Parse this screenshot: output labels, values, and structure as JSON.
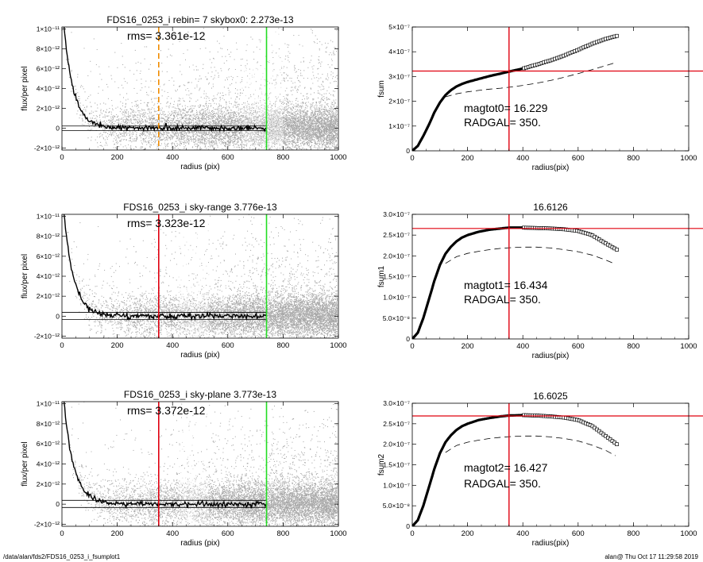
{
  "footer": {
    "left": "/data/alan/fds2/FDS16_0253_i_fsumplot1",
    "right": "alan@  Thu Oct 17 11:29:58 2019"
  },
  "colors": {
    "scatter": "#a9a9a9",
    "scatter_light": "#d9d9d9",
    "profile": "#000000",
    "red": "#e0000f",
    "green": "#22dd22",
    "orange": "#f08c00"
  },
  "chart_data": [
    {
      "id": "p1",
      "type": "scatter",
      "title": "FDS16_0253_i rebin= 7    skybox0:  2.273e-13",
      "annotation": "rms= 3.361e-12",
      "xlabel": "radius (pix)",
      "ylabel": "flux/per pixel",
      "xlim": [
        0,
        1000
      ],
      "ylim": [
        -2.2e-12,
        1.02e-11
      ],
      "xticks": [
        0,
        200,
        400,
        600,
        800,
        1000
      ],
      "xtick_labels": [
        "0",
        "200",
        "400",
        "600",
        "800",
        "1000"
      ],
      "yticks": [
        -2e-12,
        0,
        2e-12,
        4e-12,
        6e-12,
        8e-12,
        1e-11
      ],
      "ytick_labels": [
        "-2×10⁻¹²",
        "0",
        "2×10⁻¹²",
        "4×10⁻¹²",
        "6×10⁻¹²",
        "8×10⁻¹²",
        "1×10⁻¹¹"
      ],
      "hlines": [
        2.2e-13,
        -2.5e-13
      ],
      "vlines": [
        {
          "x": 350,
          "color": "orange",
          "dashed": true
        },
        {
          "x": 740,
          "color": "green",
          "dashed": false
        }
      ],
      "light_band": [
        650,
        800
      ]
    },
    {
      "id": "p2",
      "type": "line",
      "title": "",
      "xlabel": "radius(pix)",
      "ylabel": "fsum",
      "xlim": [
        0,
        1000
      ],
      "ylim": [
        0,
        5e-07
      ],
      "xticks": [
        0,
        200,
        400,
        600,
        800,
        1000
      ],
      "xtick_labels": [
        "0",
        "200",
        "400",
        "600",
        "800",
        "1000"
      ],
      "yticks": [
        0,
        1e-07,
        2e-07,
        3e-07,
        4e-07,
        5e-07
      ],
      "ytick_labels": [
        "0",
        "1×10⁻⁷",
        "2×10⁻⁷",
        "3×10⁻⁷",
        "4×10⁻⁷",
        "5×10⁻⁷"
      ],
      "text_lines": [
        "magtot0=  16.229",
        "RADGAL=    350."
      ],
      "hline": 3.22e-07,
      "vline": 350,
      "series": [
        {
          "x": [
            0,
            20,
            40,
            60,
            80,
            100,
            120,
            140,
            160,
            180,
            200,
            240,
            280,
            320,
            350,
            400,
            450,
            500,
            550,
            600,
            650,
            700,
            740
          ],
          "y": [
            0,
            2e-08,
            6e-08,
            1.05e-07,
            1.55e-07,
            1.95e-07,
            2.25e-07,
            2.45e-07,
            2.6e-07,
            2.7e-07,
            2.78e-07,
            2.9e-07,
            3.02e-07,
            3.12e-07,
            3.2e-07,
            3.32e-07,
            3.48e-07,
            3.65e-07,
            3.85e-07,
            4.08e-07,
            4.32e-07,
            4.52e-07,
            4.64e-07
          ]
        },
        {
          "x": [
            120,
            160,
            200,
            240,
            280,
            320,
            360,
            400,
            450,
            500,
            550,
            600,
            650,
            700,
            735
          ],
          "y": [
            2.18e-07,
            2.3e-07,
            2.38e-07,
            2.44e-07,
            2.49e-07,
            2.53e-07,
            2.58e-07,
            2.64e-07,
            2.73e-07,
            2.84e-07,
            2.97e-07,
            3.12e-07,
            3.28e-07,
            3.44e-07,
            3.56e-07
          ],
          "dashed": true
        }
      ]
    },
    {
      "id": "p3",
      "type": "scatter",
      "title": "FDS16_0253_i sky-range  3.776e-13",
      "annotation": "rms= 3.323e-12",
      "xlabel": "radius (pix)",
      "ylabel": "flux/per pixel",
      "xlim": [
        0,
        1000
      ],
      "ylim": [
        -2.2e-12,
        1.02e-11
      ],
      "xticks": [
        0,
        200,
        400,
        600,
        800,
        1000
      ],
      "xtick_labels": [
        "0",
        "200",
        "400",
        "600",
        "800",
        "1000"
      ],
      "yticks": [
        -2e-12,
        0,
        2e-12,
        4e-12,
        6e-12,
        8e-12,
        1e-11
      ],
      "ytick_labels": [
        "-2×10⁻¹²",
        "0",
        "2×10⁻¹²",
        "4×10⁻¹²",
        "6×10⁻¹²",
        "8×10⁻¹²",
        "1×10⁻¹¹"
      ],
      "hlines": [
        3.8e-13,
        -3.3e-13
      ],
      "vlines": [
        {
          "x": 350,
          "color": "red",
          "dashed": false
        },
        {
          "x": 740,
          "color": "green",
          "dashed": false
        }
      ],
      "light_band": [
        420,
        530
      ]
    },
    {
      "id": "p4",
      "type": "line",
      "title": "16.6126",
      "xlabel": "radius(pix)",
      "ylabel": "fsum1",
      "xlim": [
        0,
        1000
      ],
      "ylim": [
        0,
        3e-07
      ],
      "xticks": [
        0,
        200,
        400,
        600,
        800,
        1000
      ],
      "xtick_labels": [
        "0",
        "200",
        "400",
        "600",
        "800",
        "1000"
      ],
      "yticks": [
        0,
        5e-08,
        1e-07,
        1.5e-07,
        2e-07,
        2.5e-07,
        3e-07
      ],
      "ytick_labels": [
        "0",
        "5.0×10⁻⁸",
        "1.0×10⁻⁷",
        "1.5×10⁻⁷",
        "2.0×10⁻⁷",
        "2.5×10⁻⁷",
        "3.0×10⁻⁷"
      ],
      "text_lines": [
        "magtot1=  16.434",
        "RADGAL=    350."
      ],
      "hline": 2.66e-07,
      "vline": 350,
      "series": [
        {
          "x": [
            0,
            20,
            40,
            60,
            80,
            100,
            120,
            140,
            160,
            180,
            200,
            240,
            280,
            320,
            350,
            400,
            450,
            500,
            550,
            600,
            650,
            700,
            740
          ],
          "y": [
            0,
            1.5e-08,
            5e-08,
            9.5e-08,
            1.4e-07,
            1.78e-07,
            2.05e-07,
            2.22e-07,
            2.35e-07,
            2.44e-07,
            2.5e-07,
            2.58e-07,
            2.63e-07,
            2.66e-07,
            2.68e-07,
            2.68e-07,
            2.67e-07,
            2.66e-07,
            2.64e-07,
            2.6e-07,
            2.5e-07,
            2.3e-07,
            2.15e-07
          ]
        },
        {
          "x": [
            120,
            160,
            200,
            240,
            280,
            320,
            360,
            400,
            450,
            500,
            550,
            600,
            650,
            700,
            735
          ],
          "y": [
            1.82e-07,
            1.98e-07,
            2.06e-07,
            2.11e-07,
            2.15e-07,
            2.18e-07,
            2.2e-07,
            2.21e-07,
            2.21e-07,
            2.19e-07,
            2.15e-07,
            2.1e-07,
            2.02e-07,
            1.9e-07,
            1.8e-07
          ],
          "dashed": true
        }
      ]
    },
    {
      "id": "p5",
      "type": "scatter",
      "title": "FDS16_0253_i sky-plane  3.773e-13",
      "annotation": "rms= 3.372e-12",
      "xlabel": "radius (pix)",
      "ylabel": "flux/per pixel",
      "xlim": [
        0,
        1000
      ],
      "ylim": [
        -2.2e-12,
        1.02e-11
      ],
      "xticks": [
        0,
        200,
        400,
        600,
        800,
        1000
      ],
      "xtick_labels": [
        "0",
        "200",
        "400",
        "600",
        "800",
        "1000"
      ],
      "yticks": [
        -2e-12,
        0,
        2e-12,
        4e-12,
        6e-12,
        8e-12,
        1e-11
      ],
      "ytick_labels": [
        "-2×10⁻¹²",
        "0",
        "2×10⁻¹²",
        "4×10⁻¹²",
        "6×10⁻¹²",
        "8×10⁻¹²",
        "1×10⁻¹¹"
      ],
      "hlines": [
        3.8e-13,
        -3.3e-13
      ],
      "vlines": [
        {
          "x": 350,
          "color": "red",
          "dashed": false
        },
        {
          "x": 740,
          "color": "green",
          "dashed": false
        }
      ],
      "light_band": [
        420,
        530
      ]
    },
    {
      "id": "p6",
      "type": "line",
      "title": "16.6025",
      "xlabel": "radius(pix)",
      "ylabel": "fsum2",
      "xlim": [
        0,
        1000
      ],
      "ylim": [
        0,
        3e-07
      ],
      "xticks": [
        0,
        200,
        400,
        600,
        800,
        1000
      ],
      "xtick_labels": [
        "0",
        "200",
        "400",
        "600",
        "800",
        "1000"
      ],
      "yticks": [
        0,
        5e-08,
        1e-07,
        1.5e-07,
        2e-07,
        2.5e-07,
        3e-07
      ],
      "ytick_labels": [
        "0",
        "5.0×10⁻⁸",
        "1.0×10⁻⁷",
        "1.5×10⁻⁷",
        "2.0×10⁻⁷",
        "2.5×10⁻⁷",
        "3.0×10⁻⁷"
      ],
      "text_lines": [
        "magtot2=  16.427",
        "RADGAL=    350."
      ],
      "hline": 2.69e-07,
      "vline": 350,
      "series": [
        {
          "x": [
            0,
            20,
            40,
            60,
            80,
            100,
            120,
            140,
            160,
            180,
            200,
            240,
            280,
            320,
            350,
            400,
            450,
            500,
            550,
            600,
            650,
            700,
            740
          ],
          "y": [
            0,
            1.5e-08,
            5e-08,
            9.5e-08,
            1.4e-07,
            1.78e-07,
            2.05e-07,
            2.22e-07,
            2.35e-07,
            2.44e-07,
            2.5e-07,
            2.59e-07,
            2.64e-07,
            2.68e-07,
            2.7e-07,
            2.71e-07,
            2.7e-07,
            2.68e-07,
            2.65e-07,
            2.59e-07,
            2.45e-07,
            2.2e-07,
            2e-07
          ]
        },
        {
          "x": [
            120,
            160,
            200,
            240,
            280,
            320,
            360,
            400,
            450,
            500,
            550,
            600,
            650,
            700,
            735
          ],
          "y": [
            1.8e-07,
            1.97e-07,
            2.05e-07,
            2.1e-07,
            2.14e-07,
            2.17e-07,
            2.19e-07,
            2.2e-07,
            2.2e-07,
            2.18e-07,
            2.14e-07,
            2.08e-07,
            1.98e-07,
            1.85e-07,
            1.72e-07
          ],
          "dashed": true
        }
      ]
    }
  ]
}
